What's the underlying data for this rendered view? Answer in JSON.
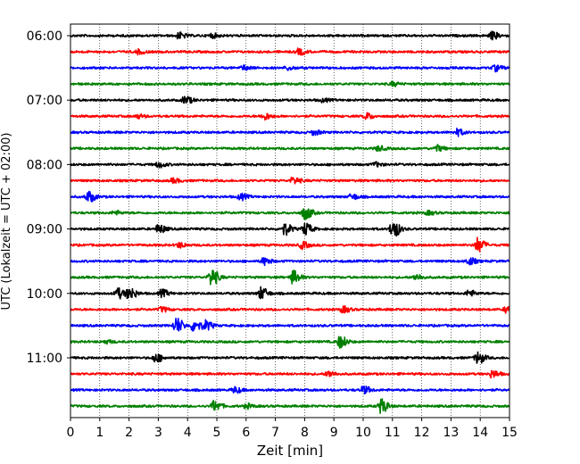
{
  "chart_data": {
    "type": "line",
    "xlabel": "Zeit  [min]",
    "ylabel": "UTC (Lokalzeit = UTC + 02:00)",
    "xlim": [
      0,
      15
    ],
    "x_ticks": [
      0,
      1,
      2,
      3,
      4,
      5,
      6,
      7,
      8,
      9,
      10,
      11,
      12,
      13,
      14,
      15
    ],
    "x_grid": "dotted",
    "y_tick_labels": [
      "06:00",
      "07:00",
      "08:00",
      "09:00",
      "10:00",
      "11:00"
    ],
    "y_tick_rows": [
      0,
      4,
      8,
      12,
      16,
      20
    ],
    "row_count": 24,
    "row_colors": [
      "#000000",
      "#ff0000",
      "#0000ff",
      "#008000"
    ],
    "events": [
      {
        "row": 0,
        "x": 3.7,
        "amp": 0.5
      },
      {
        "row": 0,
        "x": 4.8,
        "amp": 0.35
      },
      {
        "row": 0,
        "x": 14.4,
        "amp": 0.6
      },
      {
        "row": 1,
        "x": 2.3,
        "amp": 0.35
      },
      {
        "row": 1,
        "x": 7.8,
        "amp": 0.5
      },
      {
        "row": 2,
        "x": 5.9,
        "amp": 0.35
      },
      {
        "row": 2,
        "x": 7.4,
        "amp": 0.3
      },
      {
        "row": 2,
        "x": 14.5,
        "amp": 0.5
      },
      {
        "row": 3,
        "x": 11.0,
        "amp": 0.3
      },
      {
        "row": 4,
        "x": 3.9,
        "amp": 0.65
      },
      {
        "row": 4,
        "x": 8.6,
        "amp": 0.25
      },
      {
        "row": 5,
        "x": 6.6,
        "amp": 0.55
      },
      {
        "row": 5,
        "x": 10.1,
        "amp": 0.5
      },
      {
        "row": 5,
        "x": 2.3,
        "amp": 0.3
      },
      {
        "row": 6,
        "x": 8.3,
        "amp": 0.4
      },
      {
        "row": 6,
        "x": 13.2,
        "amp": 0.55
      },
      {
        "row": 7,
        "x": 10.5,
        "amp": 0.4
      },
      {
        "row": 7,
        "x": 12.5,
        "amp": 0.5
      },
      {
        "row": 8,
        "x": 3.0,
        "amp": 0.45
      },
      {
        "row": 8,
        "x": 10.4,
        "amp": 0.35
      },
      {
        "row": 9,
        "x": 3.5,
        "amp": 0.35
      },
      {
        "row": 9,
        "x": 7.6,
        "amp": 0.55
      },
      {
        "row": 10,
        "x": 0.6,
        "amp": 0.9
      },
      {
        "row": 10,
        "x": 5.8,
        "amp": 0.5
      },
      {
        "row": 10,
        "x": 9.6,
        "amp": 0.45
      },
      {
        "row": 11,
        "x": 1.5,
        "amp": 0.3
      },
      {
        "row": 11,
        "x": 8.0,
        "amp": 1.1
      },
      {
        "row": 11,
        "x": 12.2,
        "amp": 0.3
      },
      {
        "row": 12,
        "x": 3.0,
        "amp": 0.75
      },
      {
        "row": 12,
        "x": 7.3,
        "amp": 1.0
      },
      {
        "row": 12,
        "x": 8.0,
        "amp": 1.0
      },
      {
        "row": 12,
        "x": 11.0,
        "amp": 1.6
      },
      {
        "row": 13,
        "x": 3.7,
        "amp": 0.4
      },
      {
        "row": 13,
        "x": 7.9,
        "amp": 0.55
      },
      {
        "row": 13,
        "x": 13.9,
        "amp": 1.2
      },
      {
        "row": 14,
        "x": 6.6,
        "amp": 0.6
      },
      {
        "row": 14,
        "x": 13.6,
        "amp": 0.6
      },
      {
        "row": 15,
        "x": 4.8,
        "amp": 1.5
      },
      {
        "row": 15,
        "x": 7.6,
        "amp": 1.1
      },
      {
        "row": 15,
        "x": 11.8,
        "amp": 0.5
      },
      {
        "row": 16,
        "x": 1.6,
        "amp": 0.85
      },
      {
        "row": 16,
        "x": 2.0,
        "amp": 1.0
      },
      {
        "row": 16,
        "x": 3.1,
        "amp": 0.6
      },
      {
        "row": 16,
        "x": 6.5,
        "amp": 1.0
      },
      {
        "row": 16,
        "x": 13.6,
        "amp": 0.5
      },
      {
        "row": 17,
        "x": 3.1,
        "amp": 0.4
      },
      {
        "row": 17,
        "x": 9.3,
        "amp": 0.5
      },
      {
        "row": 17,
        "x": 14.9,
        "amp": 0.6
      },
      {
        "row": 18,
        "x": 3.6,
        "amp": 1.3
      },
      {
        "row": 18,
        "x": 4.2,
        "amp": 1.0
      },
      {
        "row": 18,
        "x": 4.6,
        "amp": 0.8
      },
      {
        "row": 19,
        "x": 9.2,
        "amp": 1.0
      },
      {
        "row": 19,
        "x": 1.2,
        "amp": 0.25
      },
      {
        "row": 20,
        "x": 2.9,
        "amp": 0.7
      },
      {
        "row": 20,
        "x": 13.9,
        "amp": 1.0
      },
      {
        "row": 21,
        "x": 8.8,
        "amp": 0.5
      },
      {
        "row": 21,
        "x": 14.4,
        "amp": 0.6
      },
      {
        "row": 22,
        "x": 5.6,
        "amp": 0.5
      },
      {
        "row": 22,
        "x": 10.0,
        "amp": 0.6
      },
      {
        "row": 23,
        "x": 4.9,
        "amp": 0.9
      },
      {
        "row": 23,
        "x": 10.6,
        "amp": 1.2
      },
      {
        "row": 23,
        "x": 6.0,
        "amp": 0.35
      }
    ]
  }
}
